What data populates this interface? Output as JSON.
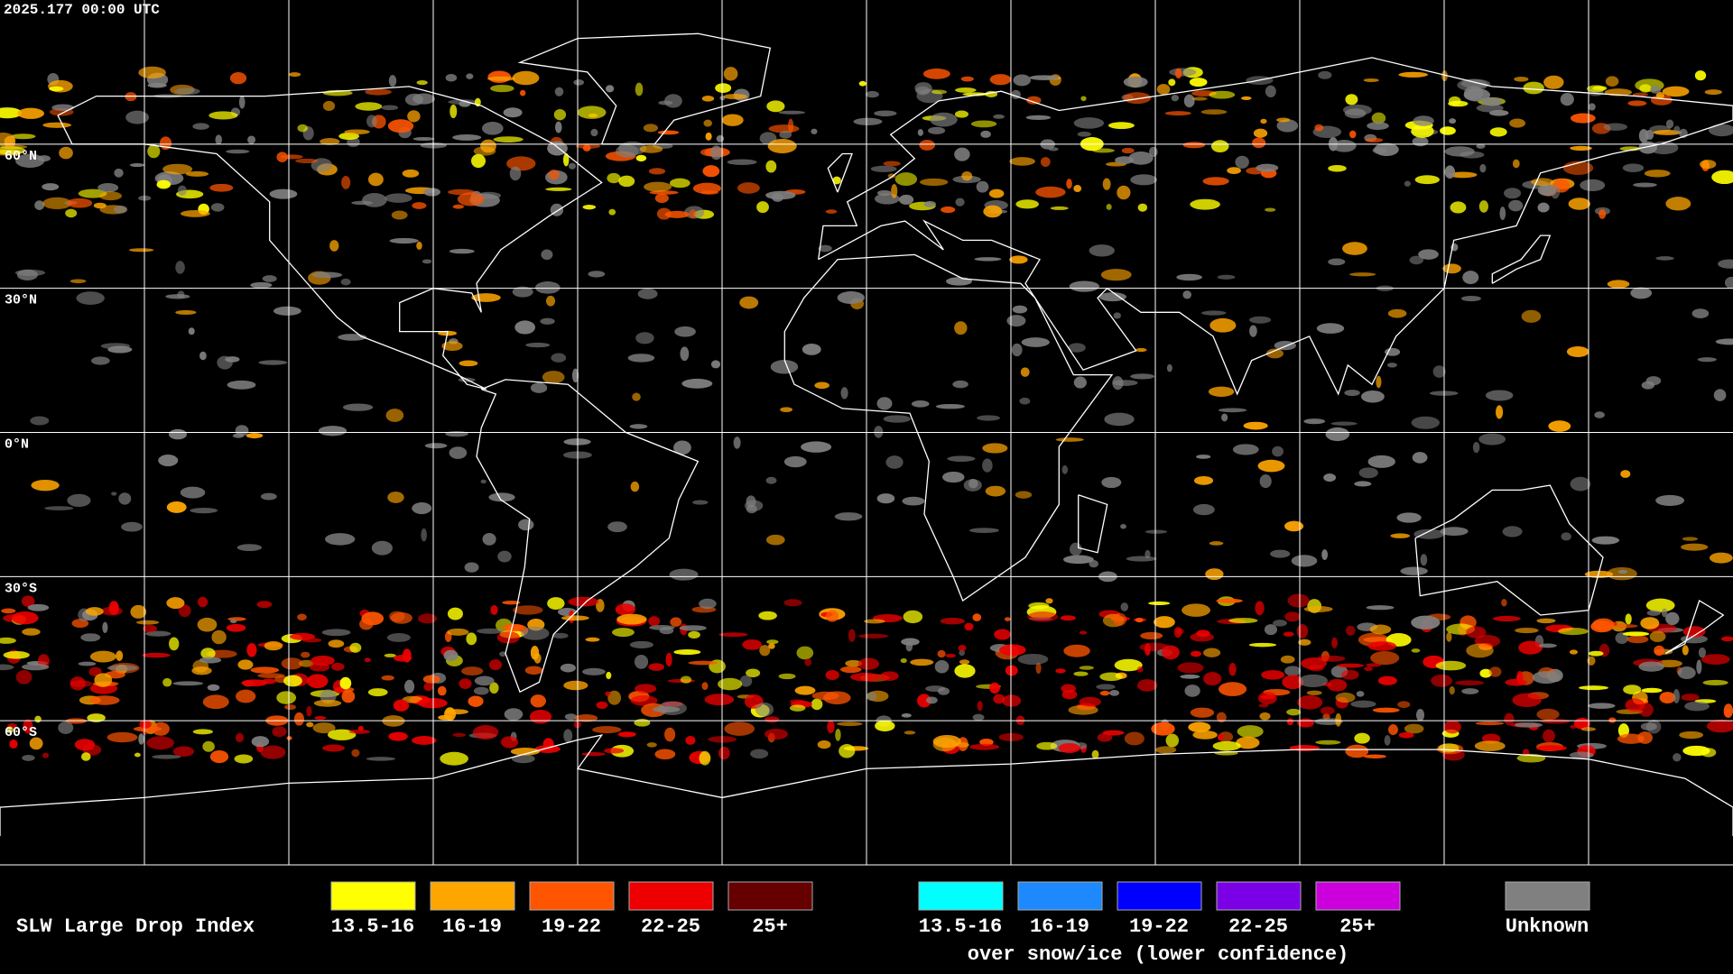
{
  "header": {
    "timestamp": "2025.177 00:00 UTC"
  },
  "map": {
    "latitude_labels": [
      "60°N",
      "30°N",
      "0°N",
      "30°S",
      "60°S"
    ]
  },
  "legend": {
    "title": "SLW Large Drop Index",
    "groups": [
      {
        "items": [
          {
            "label": "13.5-16",
            "color": "#ffff00"
          },
          {
            "label": "16-19",
            "color": "#ffa500"
          },
          {
            "label": "19-22",
            "color": "#ff5500"
          },
          {
            "label": "22-25",
            "color": "#ee0000"
          },
          {
            "label": "25+",
            "color": "#660000"
          }
        ]
      },
      {
        "items": [
          {
            "label": "13.5-16",
            "color": "#00ffff"
          },
          {
            "label": "16-19",
            "color": "#1e88ff"
          },
          {
            "label": "19-22",
            "color": "#0000ff"
          },
          {
            "label": "22-25",
            "color": "#7a00e6"
          },
          {
            "label": "25+",
            "color": "#cc00dd"
          }
        ],
        "caption": "over snow/ice (lower confidence)"
      }
    ],
    "unknown": {
      "label": "Unknown",
      "color": "#808080"
    }
  }
}
